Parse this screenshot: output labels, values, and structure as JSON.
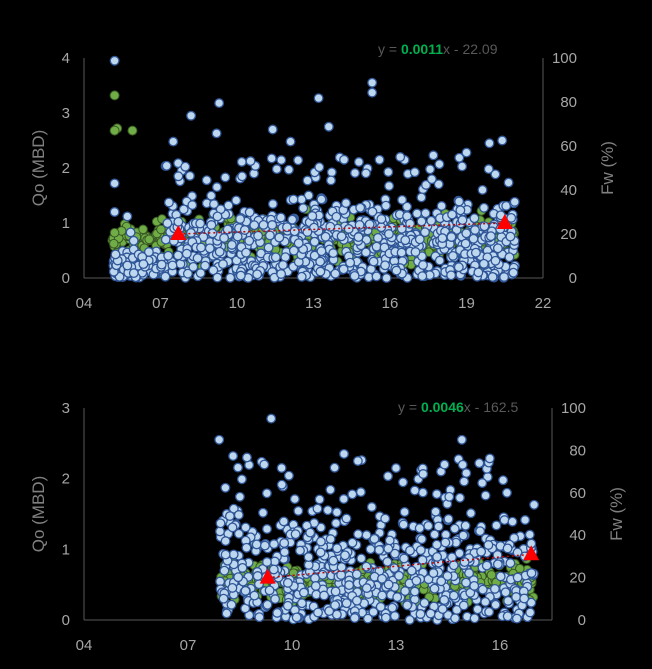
{
  "colors": {
    "background": "#000000",
    "axis": "#595959",
    "tick_text": "#a6a6a6",
    "label_text": "#808080",
    "qo_fill": "#bdd7ee",
    "qo_stroke": "#2f5597",
    "fw_fill": "#70ad47",
    "fw_stroke": "#385723",
    "trend": "#c00000",
    "marker": "#ff0000",
    "eq_gray": "#595959",
    "eq_green": "#00b050"
  },
  "chart_data": [
    {
      "type": "scatter",
      "title": "",
      "xlabel": "",
      "ylabel": "Qo (MBD)",
      "y2label": "Fw (%)",
      "x_ticks": [
        "04",
        "07",
        "10",
        "13",
        "16",
        "19",
        "22"
      ],
      "x_range": [
        4,
        22
      ],
      "ylim": [
        0,
        4
      ],
      "y_ticks": [
        "0",
        "1",
        "2",
        "3",
        "4"
      ],
      "y2lim": [
        0,
        100
      ],
      "y2_ticks": [
        "0",
        "20",
        "40",
        "60",
        "80",
        "100"
      ],
      "grid": false,
      "equation": {
        "prefix": "y = ",
        "slope": "0.0011",
        "rest": "x - 22.09"
      },
      "trend_markers": [
        {
          "x": 7.7,
          "y2": 20
        },
        {
          "x": 20.5,
          "y2": 25
        }
      ],
      "qo_outliers": [
        {
          "x": 5.2,
          "y": 3.95
        },
        {
          "x": 5.2,
          "y": 1.72
        },
        {
          "x": 5.2,
          "y": 1.2
        },
        {
          "x": 5.7,
          "y": 1.12
        },
        {
          "x": 7.7,
          "y": 1.85
        },
        {
          "x": 8.2,
          "y": 2.95
        },
        {
          "x": 9.3,
          "y": 3.18
        },
        {
          "x": 9.2,
          "y": 2.63
        },
        {
          "x": 11.4,
          "y": 2.7
        },
        {
          "x": 12.1,
          "y": 2.48
        },
        {
          "x": 13.2,
          "y": 3.27
        },
        {
          "x": 13.6,
          "y": 2.75
        },
        {
          "x": 14.2,
          "y": 2.15
        },
        {
          "x": 15.3,
          "y": 3.55
        },
        {
          "x": 15.3,
          "y": 3.37
        },
        {
          "x": 16.4,
          "y": 2.2
        },
        {
          "x": 17.7,
          "y": 2.23
        },
        {
          "x": 19.0,
          "y": 2.28
        },
        {
          "x": 19.9,
          "y": 2.45
        },
        {
          "x": 20.4,
          "y": 2.5
        },
        {
          "x": 7.5,
          "y": 2.48
        }
      ],
      "fw_outliers": [
        {
          "x": 5.2,
          "y2": 83
        },
        {
          "x": 5.3,
          "y2": 68
        },
        {
          "x": 5.2,
          "y2": 67
        },
        {
          "x": 5.9,
          "y2": 67
        }
      ],
      "cloud": {
        "x_start": 5.1,
        "x_end": 20.9,
        "qo_max": 1.6,
        "fw_center": 18,
        "fw_spread": 14
      }
    },
    {
      "type": "scatter",
      "title": "",
      "xlabel": "",
      "ylabel": "Qo (MBD)",
      "y2label": "Fw (%)",
      "x_ticks": [
        "04",
        "07",
        "10",
        "13",
        "16"
      ],
      "x_range": [
        4,
        17.5
      ],
      "ylim": [
        0,
        3
      ],
      "y_ticks": [
        "0",
        "1",
        "2",
        "3"
      ],
      "y2lim": [
        0,
        100
      ],
      "y2_ticks": [
        "0",
        "20",
        "40",
        "60",
        "80",
        "100"
      ],
      "grid": false,
      "equation": {
        "prefix": "y = ",
        "slope": "0.0046",
        "rest": "x - 162.5"
      },
      "trend_markers": [
        {
          "x": 9.3,
          "y2": 20
        },
        {
          "x": 16.9,
          "y2": 31
        }
      ],
      "qo_outliers": [
        {
          "x": 9.4,
          "y": 2.85
        },
        {
          "x": 7.9,
          "y": 2.55
        },
        {
          "x": 8.3,
          "y": 2.32
        },
        {
          "x": 8.7,
          "y": 2.3
        },
        {
          "x": 9.2,
          "y": 2.2
        },
        {
          "x": 11.5,
          "y": 2.35
        },
        {
          "x": 11.9,
          "y": 2.25
        },
        {
          "x": 13.0,
          "y": 2.15
        },
        {
          "x": 14.3,
          "y": 2.1
        },
        {
          "x": 14.9,
          "y": 2.55
        },
        {
          "x": 14.4,
          "y": 2.2
        },
        {
          "x": 16.2,
          "y": 1.8
        }
      ],
      "fw_outliers": [],
      "cloud": {
        "x_start": 7.9,
        "x_end": 17.0,
        "qo_max": 1.7,
        "fw_center": 18,
        "fw_spread": 12
      }
    }
  ]
}
